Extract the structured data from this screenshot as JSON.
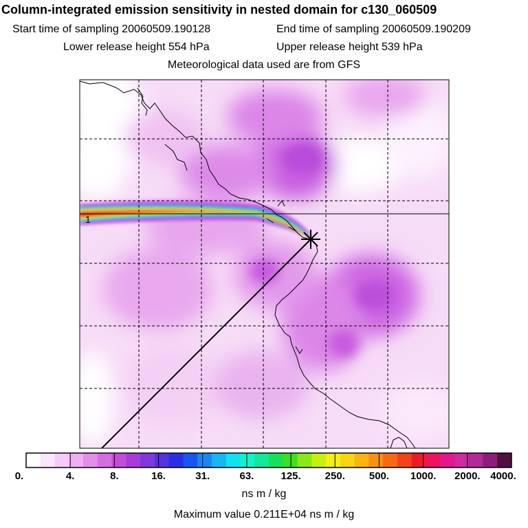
{
  "header": {
    "title": "Column-integrated emission sensitivity in nested domain for c130_060509",
    "start_label": "Start time of sampling 20060509.190128",
    "end_label": "End time of sampling 20060509.190209",
    "lower_label": "Lower release height  554 hPa",
    "upper_label": "Upper release height  539 hPa",
    "met_label": "Meteorological data used are from GFS"
  },
  "map": {
    "trajectory_label": "1",
    "release_marker": "release-point-star"
  },
  "legend": {
    "ticks": [
      "0.",
      "4.",
      "8.",
      "16.",
      "31.",
      "63.",
      "125.",
      "250.",
      "500.",
      "1000.",
      "2000.",
      "4000."
    ],
    "units": "ns m / kg",
    "max_value": "Maximum value  0.211E+04 ns m / kg",
    "colors": [
      "#ffffff",
      "#fbe6fb",
      "#f5ccf5",
      "#eeb0f0",
      "#e38ee8",
      "#d56ee0",
      "#c24ed8",
      "#a83cd8",
      "#7e3ad8",
      "#5533e0",
      "#2c2fe8",
      "#1a55f0",
      "#1a86f2",
      "#19b4f2",
      "#13e0f0",
      "#13f2c8",
      "#12e896",
      "#16e05a",
      "#3de020",
      "#8ae81a",
      "#c8ee14",
      "#f2f014",
      "#f8d614",
      "#fab414",
      "#f89014",
      "#f66a14",
      "#f24418",
      "#ee1c2a",
      "#ec1460",
      "#e01a8a",
      "#d02aa0",
      "#b02a9a",
      "#8a1e7a",
      "#501040"
    ]
  }
}
